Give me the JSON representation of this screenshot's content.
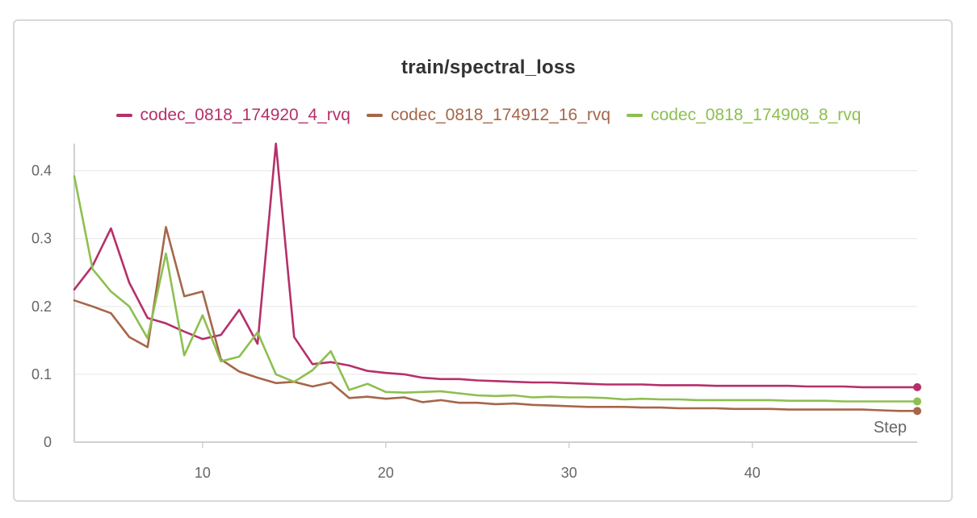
{
  "chart_data": {
    "type": "line",
    "title": "train/spectral_loss",
    "xlabel": "Step",
    "ylabel": "",
    "xlim": [
      3,
      49
    ],
    "ylim": [
      0,
      0.44
    ],
    "x_ticks": [
      10,
      20,
      30,
      40
    ],
    "y_ticks": [
      0,
      0.1,
      0.2,
      0.3,
      0.4
    ],
    "y_tick_labels": [
      "0",
      "0.1",
      "0.2",
      "0.3",
      "0.4"
    ],
    "grid": true,
    "legend": "top-center",
    "series": [
      {
        "name": "codec_0818_174920_4_rvq",
        "color": "#b5306a",
        "x": [
          3,
          4,
          5,
          6,
          7,
          8,
          9,
          10,
          11,
          12,
          13,
          14,
          15,
          16,
          17,
          18,
          19,
          20,
          21,
          22,
          23,
          24,
          25,
          26,
          27,
          28,
          29,
          30,
          31,
          32,
          33,
          34,
          35,
          36,
          37,
          38,
          39,
          40,
          41,
          42,
          43,
          44,
          45,
          46,
          47,
          48,
          49
        ],
        "y": [
          0.225,
          0.26,
          0.315,
          0.235,
          0.183,
          0.175,
          0.163,
          0.152,
          0.158,
          0.195,
          0.145,
          0.44,
          0.155,
          0.115,
          0.118,
          0.113,
          0.105,
          0.102,
          0.1,
          0.095,
          0.093,
          0.093,
          0.091,
          0.09,
          0.089,
          0.088,
          0.088,
          0.087,
          0.086,
          0.085,
          0.085,
          0.085,
          0.084,
          0.084,
          0.084,
          0.083,
          0.083,
          0.083,
          0.083,
          0.083,
          0.082,
          0.082,
          0.082,
          0.081,
          0.081,
          0.081,
          0.081
        ]
      },
      {
        "name": "codec_0818_174912_16_rvq",
        "color": "#a6664a",
        "x": [
          3,
          4,
          5,
          6,
          7,
          8,
          9,
          10,
          11,
          12,
          13,
          14,
          15,
          16,
          17,
          18,
          19,
          20,
          21,
          22,
          23,
          24,
          25,
          26,
          27,
          28,
          29,
          30,
          31,
          32,
          33,
          34,
          35,
          36,
          37,
          38,
          39,
          40,
          41,
          42,
          43,
          44,
          45,
          46,
          47,
          48,
          49
        ],
        "y": [
          0.209,
          0.2,
          0.19,
          0.155,
          0.14,
          0.317,
          0.215,
          0.222,
          0.122,
          0.104,
          0.095,
          0.087,
          0.089,
          0.082,
          0.088,
          0.065,
          0.067,
          0.064,
          0.066,
          0.059,
          0.062,
          0.058,
          0.058,
          0.056,
          0.057,
          0.055,
          0.054,
          0.053,
          0.052,
          0.052,
          0.052,
          0.051,
          0.051,
          0.05,
          0.05,
          0.05,
          0.049,
          0.049,
          0.049,
          0.048,
          0.048,
          0.048,
          0.048,
          0.048,
          0.047,
          0.046,
          0.046
        ]
      },
      {
        "name": "codec_0818_174908_8_rvq",
        "color": "#8dbf50",
        "x": [
          3,
          4,
          5,
          6,
          7,
          8,
          9,
          10,
          11,
          12,
          13,
          14,
          15,
          16,
          17,
          18,
          19,
          20,
          21,
          22,
          23,
          24,
          25,
          26,
          27,
          28,
          29,
          30,
          31,
          32,
          33,
          34,
          35,
          36,
          37,
          38,
          39,
          40,
          41,
          42,
          43,
          44,
          45,
          46,
          47,
          48,
          49
        ],
        "y": [
          0.392,
          0.255,
          0.222,
          0.2,
          0.153,
          0.278,
          0.128,
          0.187,
          0.119,
          0.126,
          0.162,
          0.1,
          0.089,
          0.106,
          0.134,
          0.077,
          0.086,
          0.074,
          0.073,
          0.074,
          0.075,
          0.072,
          0.069,
          0.068,
          0.069,
          0.066,
          0.067,
          0.066,
          0.066,
          0.065,
          0.063,
          0.064,
          0.063,
          0.063,
          0.062,
          0.062,
          0.062,
          0.062,
          0.062,
          0.061,
          0.061,
          0.061,
          0.06,
          0.06,
          0.06,
          0.06,
          0.06
        ]
      }
    ]
  }
}
